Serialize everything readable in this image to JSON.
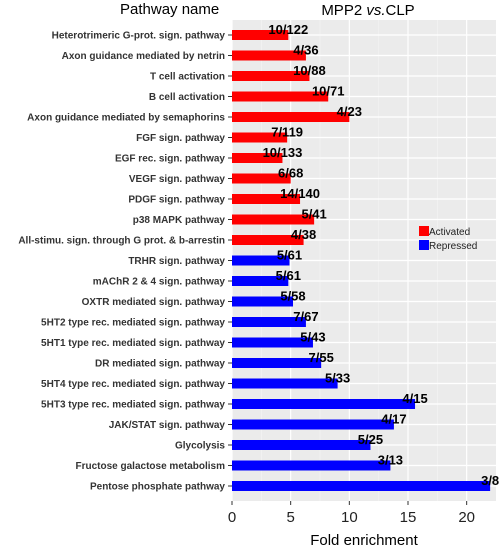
{
  "chart_data": {
    "type": "bar",
    "orientation": "horizontal",
    "title": "MPP2 vs.CLP",
    "title_parts": [
      "MPP2 ",
      "vs.",
      "CLP"
    ],
    "category_header": "Pathway name",
    "xlabel": "Fold enrichment",
    "xlim": [
      0,
      22.5
    ],
    "xticks": [
      0,
      5,
      10,
      15,
      20
    ],
    "grid": true,
    "legend": {
      "placement": "right",
      "entries": [
        {
          "name": "Activated",
          "color": "#ff0000"
        },
        {
          "name": "Repressed",
          "color": "#0000ff"
        }
      ]
    },
    "categories": [
      "Heterotrimeric G-prot. sign. pathway",
      "Axon guidance mediated by netrin",
      "T cell activation",
      "B cell activation",
      "Axon guidance mediated by semaphorins",
      "FGF sign. pathway",
      "EGF rec. sign. pathway",
      "VEGF sign. pathway",
      "PDGF sign. pathway",
      "p38 MAPK pathway",
      "All-stimu. sign. through G prot. & b-arrestin",
      "TRHR sign. pathway",
      "mAChR 2 & 4 sign. pathway",
      "OXTR mediated sign. pathway",
      "5HT2 type rec. mediated sign. pathway",
      "5HT1 type rec. mediated sign. pathway",
      "DR mediated sign. pathway",
      "5HT4 type rec. mediated sign. pathway",
      "5HT3 type rec. mediated sign. pathway",
      "JAK/STAT sign. pathway",
      "Glycolysis",
      "Fructose galactose metabolism",
      "Pentose phosphate pathway"
    ],
    "values": [
      4.8,
      6.3,
      6.6,
      8.2,
      10.0,
      4.7,
      4.3,
      5.0,
      5.8,
      7.0,
      6.1,
      4.9,
      4.8,
      5.2,
      6.3,
      6.9,
      7.6,
      9.0,
      15.6,
      13.8,
      11.8,
      13.5,
      22.0
    ],
    "groups": [
      "Activated",
      "Activated",
      "Activated",
      "Activated",
      "Activated",
      "Activated",
      "Activated",
      "Activated",
      "Activated",
      "Activated",
      "Activated",
      "Repressed",
      "Repressed",
      "Repressed",
      "Repressed",
      "Repressed",
      "Repressed",
      "Repressed",
      "Repressed",
      "Repressed",
      "Repressed",
      "Repressed",
      "Repressed"
    ],
    "data_labels": [
      "10/122",
      "4/36",
      "10/88",
      "10/71",
      "4/23",
      "7/119",
      "10/133",
      "6/68",
      "14/140",
      "5/41",
      "4/38",
      "5/61",
      "5/61",
      "5/58",
      "7/67",
      "5/43",
      "7/55",
      "5/33",
      "4/15",
      "4/17",
      "5/25",
      "3/13",
      "3/8"
    ]
  }
}
